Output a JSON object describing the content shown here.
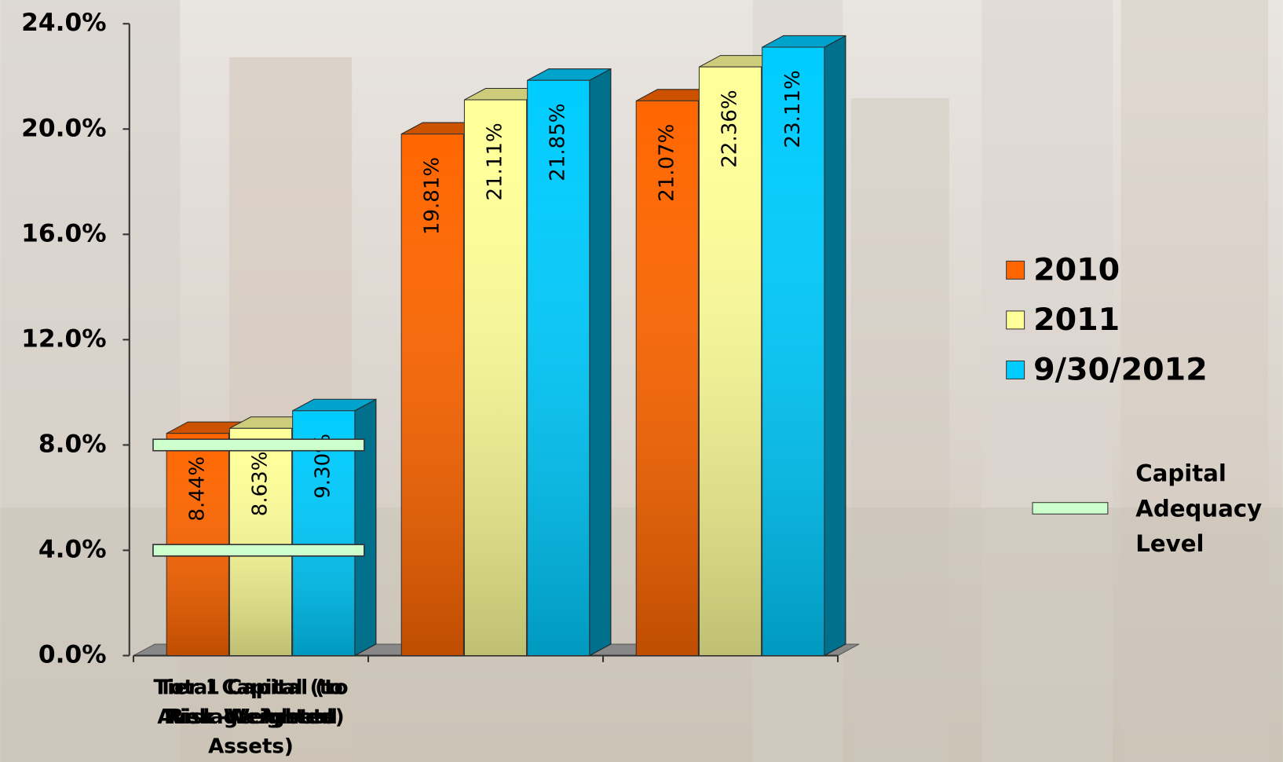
{
  "chart_data": {
    "type": "bar",
    "categories": [
      "Tier 1 Capital (to Average Assets)",
      "Tier 1 Capital (to Risk -Weighted Assets)",
      "Total Capital (to Risk Weighted Assets)"
    ],
    "series": [
      {
        "name": "2010",
        "color": "#ff6600",
        "values": [
          8.44,
          19.81,
          21.07
        ],
        "value_labels": [
          "8.44%",
          "19.81%",
          "21.07%"
        ]
      },
      {
        "name": "2011",
        "color": "#ffff99",
        "values": [
          8.63,
          21.11,
          22.36
        ],
        "value_labels": [
          "8.63%",
          "21.11%",
          "22.36%"
        ]
      },
      {
        "name": "9/30/2012",
        "color": "#00ccff",
        "values": [
          9.3,
          21.85,
          23.11
        ],
        "value_labels": [
          "9.30%",
          "21.85%",
          "23.11%"
        ]
      }
    ],
    "level": {
      "name": "Capital Adequacy Level",
      "color": "#ccffcc",
      "values": [
        4,
        4,
        8
      ]
    },
    "ylim": [
      0,
      24
    ],
    "yticks": [
      {
        "value": 0,
        "label": "0.0%"
      },
      {
        "value": 4,
        "label": "4.0%"
      },
      {
        "value": 8,
        "label": "8.0%"
      },
      {
        "value": 12,
        "label": "12.0%"
      },
      {
        "value": 16,
        "label": "16.0%"
      },
      {
        "value": 20,
        "label": "20.0%"
      },
      {
        "value": 24,
        "label": "24.0%"
      }
    ],
    "legend": "right"
  }
}
